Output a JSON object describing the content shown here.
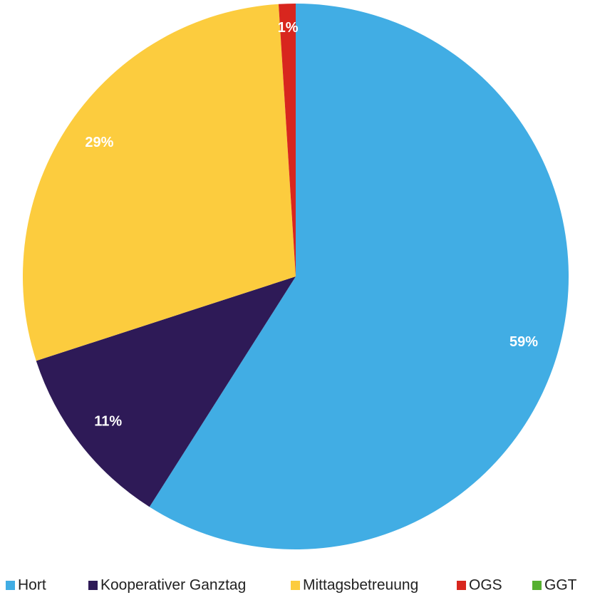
{
  "chart_data": {
    "type": "pie",
    "categories": [
      "Hort",
      "Kooperativer Ganztag",
      "Mittagsbetreuung",
      "OGS",
      "GGT"
    ],
    "values": [
      59,
      11,
      29,
      1,
      0
    ],
    "value_labels": [
      "59%",
      "11%",
      "29%",
      "1%",
      null
    ],
    "colors": [
      "#41ade4",
      "#2e1a57",
      "#fccc3e",
      "#d8261e",
      "#56b030"
    ],
    "legend": "bottom"
  }
}
